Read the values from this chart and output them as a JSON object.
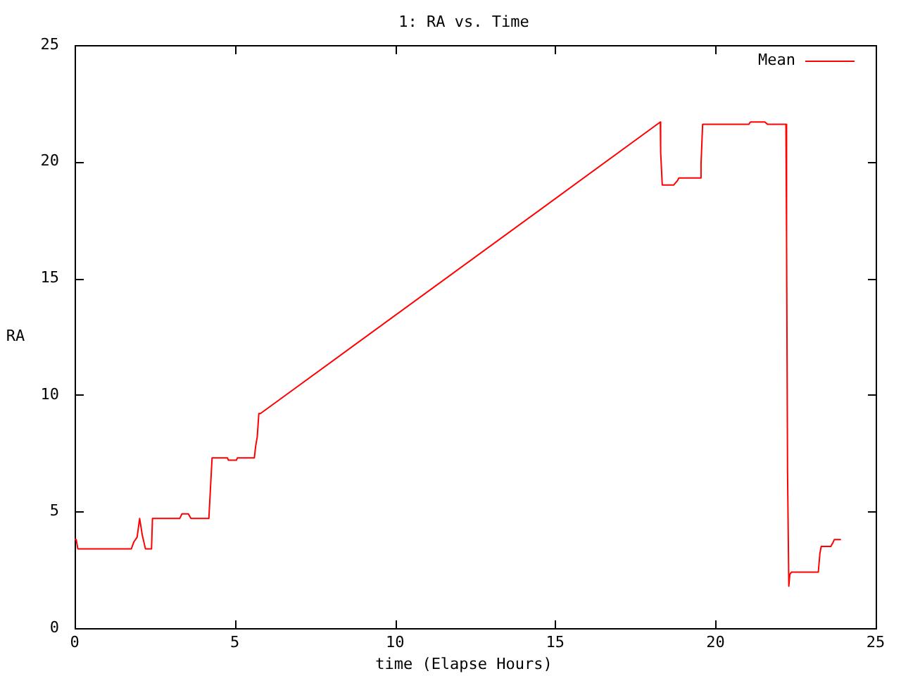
{
  "chart_data": {
    "type": "line",
    "title": "1: RA vs. Time",
    "xlabel": "time (Elapse Hours)",
    "ylabel": "RA",
    "x": [
      0,
      0.05,
      0.1,
      1.77,
      1.85,
      1.95,
      2.03,
      2.11,
      2.21,
      2.4,
      2.43,
      3.28,
      3.35,
      3.55,
      3.63,
      4.19,
      4.29,
      4.77,
      4.8,
      5.05,
      5.08,
      5.61,
      5.65,
      5.7,
      5.75,
      5.8,
      6.6,
      18.28,
      18.29,
      18.34,
      18.65,
      18.7,
      18.82,
      18.86,
      19.52,
      19.55,
      19.6,
      21.04,
      21.09,
      21.54,
      21.63,
      22.2,
      22.22,
      22.25,
      22.29,
      22.32,
      22.37,
      23.21,
      23.26,
      23.3,
      23.6,
      23.68,
      23.71,
      23.9
    ],
    "series": [
      {
        "name": "Mean",
        "color": "#ff0000",
        "values": [
          3.8,
          3.8,
          3.4,
          3.4,
          3.7,
          3.9,
          4.7,
          4.0,
          3.4,
          3.4,
          4.7,
          4.7,
          4.9,
          4.9,
          4.7,
          4.7,
          7.3,
          7.3,
          7.2,
          7.2,
          7.3,
          7.3,
          7.8,
          8.2,
          9.2,
          9.2,
          10.0,
          21.7,
          20.4,
          19.0,
          19.0,
          19.0,
          19.2,
          19.3,
          19.3,
          19.9,
          21.6,
          21.6,
          21.7,
          21.7,
          21.6,
          21.6,
          16.6,
          6.7,
          1.8,
          2.3,
          2.4,
          2.4,
          3.2,
          3.5,
          3.5,
          3.7,
          3.8,
          3.8
        ]
      }
    ],
    "xlim": [
      0,
      25
    ],
    "ylim": [
      0,
      25
    ],
    "xticks": [
      0,
      5,
      10,
      15,
      20,
      25
    ],
    "yticks": [
      0,
      5,
      10,
      15,
      20,
      25
    ],
    "legend": "top right",
    "marker": "none",
    "line_style": "solid"
  }
}
